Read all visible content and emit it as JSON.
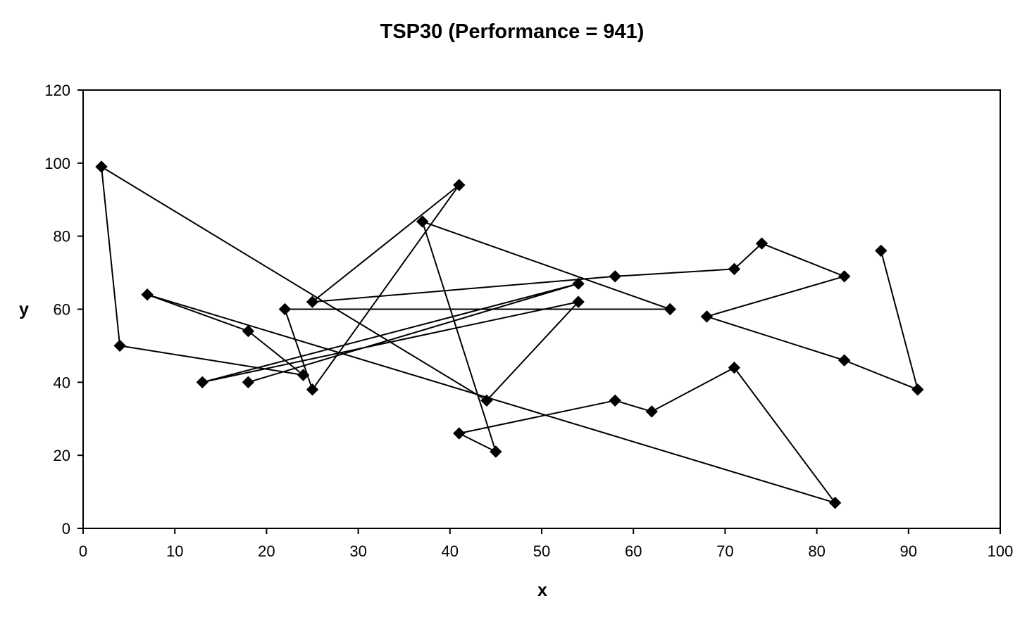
{
  "chart_data": {
    "type": "line",
    "title": "TSP30 (Performance = 941)",
    "xlabel": "x",
    "ylabel": "y",
    "xlim": [
      0,
      100
    ],
    "ylim": [
      0,
      120
    ],
    "xticks": [
      "0",
      "10",
      "20",
      "30",
      "40",
      "50",
      "60",
      "70",
      "80",
      "90",
      "100"
    ],
    "yticks": [
      "0",
      "20",
      "40",
      "60",
      "80",
      "100",
      "120"
    ],
    "grid": false,
    "legend": false,
    "marker": "diamond",
    "line_color": "#000000",
    "series": [
      {
        "x": [
          87,
          91,
          83,
          68,
          83,
          74,
          71,
          58,
          25,
          41,
          25,
          22,
          64,
          37,
          45,
          41,
          58,
          62,
          71,
          82,
          7,
          18,
          24,
          4,
          2,
          44,
          54,
          13,
          54,
          18
        ],
        "y": [
          76,
          38,
          46,
          58,
          69,
          78,
          71,
          69,
          62,
          94,
          38,
          60,
          60,
          84,
          21,
          26,
          35,
          32,
          44,
          7,
          64,
          54,
          42,
          50,
          99,
          35,
          62,
          40,
          67,
          40
        ]
      }
    ]
  }
}
